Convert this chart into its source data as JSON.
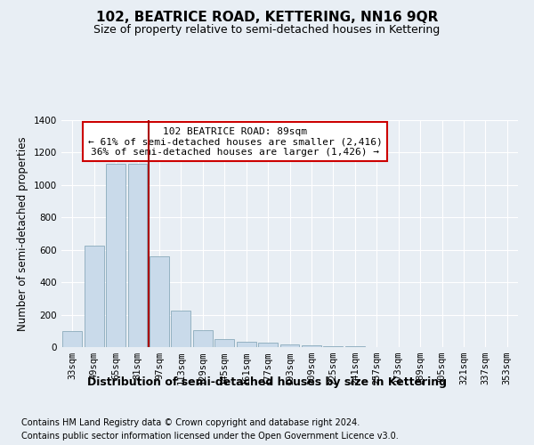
{
  "title": "102, BEATRICE ROAD, KETTERING, NN16 9QR",
  "subtitle": "Size of property relative to semi-detached houses in Kettering",
  "xlabel": "Distribution of semi-detached houses by size in Kettering",
  "ylabel": "Number of semi-detached properties",
  "footer_line1": "Contains HM Land Registry data © Crown copyright and database right 2024.",
  "footer_line2": "Contains public sector information licensed under the Open Government Licence v3.0.",
  "annotation_line1": "102 BEATRICE ROAD: 89sqm",
  "annotation_line2": "← 61% of semi-detached houses are smaller (2,416)",
  "annotation_line3": "36% of semi-detached houses are larger (1,426) →",
  "bin_labels": [
    "33sqm",
    "49sqm",
    "65sqm",
    "81sqm",
    "97sqm",
    "113sqm",
    "129sqm",
    "145sqm",
    "161sqm",
    "177sqm",
    "193sqm",
    "209sqm",
    "225sqm",
    "241sqm",
    "257sqm",
    "273sqm",
    "289sqm",
    "305sqm",
    "321sqm",
    "337sqm",
    "353sqm"
  ],
  "bin_values": [
    100,
    625,
    1130,
    1130,
    560,
    225,
    105,
    52,
    32,
    28,
    15,
    10,
    6,
    5,
    2,
    0,
    0,
    0,
    0,
    0,
    0
  ],
  "bar_color": "#c9daea",
  "bar_edge_color": "#8aaabb",
  "vline_x": 3.5,
  "vline_color": "#aa0000",
  "ylim": [
    0,
    1400
  ],
  "yticks": [
    0,
    200,
    400,
    600,
    800,
    1000,
    1200,
    1400
  ],
  "bg_color": "#e8eef4",
  "plot_bg_color": "#e8eef4",
  "grid_color": "#ffffff",
  "annotation_box_color": "#ffffff",
  "annotation_border_color": "#cc0000",
  "title_fontsize": 11,
  "subtitle_fontsize": 9,
  "xlabel_fontsize": 9,
  "ylabel_fontsize": 8.5,
  "tick_fontsize": 7.5,
  "annotation_fontsize": 8,
  "footer_fontsize": 7
}
